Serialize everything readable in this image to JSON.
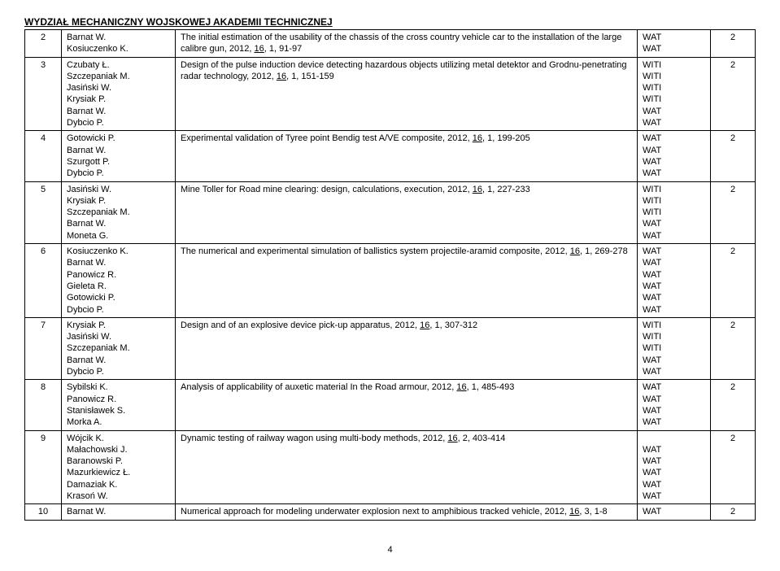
{
  "header": "WYDZIAŁ MECHANICZNY WOJSKOWEJ AKADEMII TECHNICZNEJ",
  "rows": [
    {
      "n": "2",
      "authors": [
        "Barnat W.",
        "Kosiuczenko K."
      ],
      "desc_plain": "The initial estimation of the usability of the chassis of the cross country vehicle car to the installation of the large calibre gun, 2012, ",
      "desc_u": "16",
      "desc_tail": ", 1, 91-97",
      "aff": [
        "WAT",
        "WAT"
      ],
      "pts": "2"
    },
    {
      "n": "3",
      "authors": [
        "Czubaty Ł.",
        "Szczepaniak M.",
        "Jasiński W.",
        "Krysiak P.",
        "Barnat W.",
        "Dybcio P."
      ],
      "desc_plain": "Design of the pulse induction device detecting hazardous objects utilizing metal detektor and Grodnu-penetrating radar technology, 2012, ",
      "desc_u": "16",
      "desc_tail": ", 1, 151-159",
      "aff": [
        "WITI",
        "WITI",
        "WITI",
        "WITI",
        "WAT",
        "WAT"
      ],
      "pts": "2"
    },
    {
      "n": "4",
      "authors": [
        "Gotowicki P.",
        "Barnat W.",
        "Szurgott P.",
        "Dybcio P."
      ],
      "desc_plain": "Experimental validation of Tyree point Bendig test A/VE composite, 2012, ",
      "desc_u": "16",
      "desc_tail": ", 1, 199-205",
      "aff": [
        "WAT",
        "WAT",
        "WAT",
        "WAT"
      ],
      "pts": "2"
    },
    {
      "n": "5",
      "authors": [
        "Jasiński W.",
        "Krysiak P.",
        "Szczepaniak M.",
        "Barnat W.",
        "Moneta G."
      ],
      "desc_plain": "Mine Toller for Road mine clearing: design, calculations, execution, 2012, ",
      "desc_u": "16",
      "desc_tail": ", 1, 227-233",
      "aff": [
        "WITI",
        "WITI",
        "WITI",
        "WAT",
        "WAT"
      ],
      "pts": "2"
    },
    {
      "n": "6",
      "authors": [
        "Kosiuczenko K.",
        "Barnat W.",
        "Panowicz R.",
        "Gieleta R.",
        "Gotowicki P.",
        "Dybcio P."
      ],
      "desc_plain": "The numerical and experimental simulation of ballistics system projectile-aramid composite, 2012, ",
      "desc_u": "16",
      "desc_tail": ", 1, 269-278",
      "aff": [
        "WAT",
        "WAT",
        "WAT",
        "WAT",
        "WAT",
        "WAT"
      ],
      "pts": "2"
    },
    {
      "n": "7",
      "authors": [
        "Krysiak P.",
        "Jasiński W.",
        "Szczepaniak M.",
        "Barnat W.",
        "Dybcio P."
      ],
      "desc_plain": "Design and of an explosive device pick-up apparatus, 2012, ",
      "desc_u": "16",
      "desc_tail": ", 1, 307-312",
      "aff": [
        "WITI",
        "WITI",
        "WITI",
        "WAT",
        "WAT"
      ],
      "pts": "2"
    },
    {
      "n": "8",
      "authors": [
        "Sybilski K.",
        "Panowicz R.",
        "Stanisławek S.",
        "Morka A."
      ],
      "desc_plain": "Analysis of applicability of auxetic material In the Road armour, 2012, ",
      "desc_u": "16",
      "desc_tail": ", 1, 485-493",
      "aff": [
        "WAT",
        "WAT",
        "WAT",
        "WAT"
      ],
      "pts": "2"
    },
    {
      "n": "9",
      "authors": [
        "Wójcik K.",
        "Małachowski J.",
        "Baranowski P.",
        "Mazurkiewicz Ł.",
        "Damaziak K.",
        "Krasoń W."
      ],
      "desc_plain": "Dynamic testing of railway wagon using multi-body methods, 2012, ",
      "desc_u": "16",
      "desc_tail": ", 2, 403-414",
      "aff": [
        "",
        "WAT",
        "WAT",
        "WAT",
        "WAT",
        "WAT"
      ],
      "pts": "2"
    },
    {
      "n": "10",
      "authors": [
        "Barnat W."
      ],
      "desc_plain": "Numerical approach for modeling underwater explosion next to amphibious tracked vehicle, 2012, ",
      "desc_u": "16",
      "desc_tail": ", 3, 1-8",
      "aff": [
        "WAT"
      ],
      "pts": "2"
    }
  ],
  "page": "4"
}
